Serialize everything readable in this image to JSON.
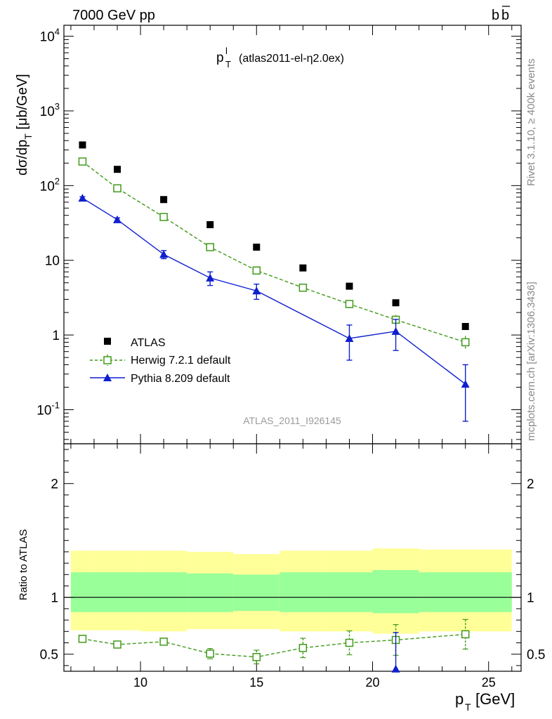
{
  "header": {
    "left": "7000 GeV pp",
    "right_base": "b",
    "right_bar": "b"
  },
  "side_labels": {
    "rivet": "Rivet 3.1.10, ≥ 400k events",
    "mcplots": "mcplots.cern.ch [arXiv:1306.3436]"
  },
  "chart_data": [
    {
      "type": "scatter",
      "panel": "main",
      "title_main": "p",
      "title_sup": "l",
      "title_sub": "T",
      "title_rest": "(atlas2011-el-η2.0ex)",
      "ylabel": "dσ/dp_T [μb/GeV]",
      "yscale": "log",
      "ylim": [
        0.035,
        14000
      ],
      "xlim": [
        6.7,
        26.4
      ],
      "y_tick_labels": [
        "10^-1",
        "1",
        "10",
        "10^2",
        "10^3",
        "10^4"
      ],
      "watermark": "ATLAS_2011_I926145",
      "legend_position": "bottom-left",
      "series": [
        {
          "name": "ATLAS",
          "color": "#000000",
          "marker": "filled-square",
          "x": [
            7.5,
            9,
            11,
            13,
            15,
            17,
            19,
            21,
            24
          ],
          "y": [
            350,
            165,
            65,
            30,
            15,
            7.9,
            4.5,
            2.7,
            1.3
          ]
        },
        {
          "name": "Herwig 7.2.1 default",
          "color": "#3f9a1a",
          "marker": "open-square",
          "line": "dashed",
          "x": [
            7.5,
            9,
            11,
            13,
            15,
            17,
            19,
            21,
            24
          ],
          "y": [
            210,
            92,
            38,
            15,
            7.3,
            4.3,
            2.6,
            1.6,
            0.8
          ],
          "yerr": [
            10,
            4,
            2,
            1,
            0.5,
            0.35,
            0.3,
            0.25,
            0.17
          ]
        },
        {
          "name": "Pythia 8.209 default",
          "color": "#0f1fcf",
          "marker": "filled-triangle",
          "line": "solid",
          "x": [
            7.5,
            9,
            11,
            13,
            15,
            17,
            19,
            21,
            24
          ],
          "y": [
            68,
            35,
            12,
            5.8,
            3.9,
            null,
            0.9,
            1.12,
            0.22
          ],
          "yerr_lo": [
            3,
            2,
            1.5,
            1.2,
            0.9,
            null,
            0.44,
            0.5,
            0.15
          ],
          "yerr_hi": [
            3,
            2,
            1.5,
            1.2,
            0.9,
            null,
            0.46,
            0.5,
            0.18
          ]
        }
      ]
    },
    {
      "type": "line",
      "panel": "ratio",
      "ylabel": "Ratio to ATLAS",
      "ylim": [
        0.35,
        2.35
      ],
      "xlim": [
        6.7,
        26.4
      ],
      "xlabel_main": "p",
      "xlabel_sub": "T",
      "xlabel_rest": "[GeV]",
      "x_tick_labels": [
        "10",
        "15",
        "20",
        "25"
      ],
      "y_tick_labels": [
        "0.5",
        "1",
        "2"
      ],
      "bands": {
        "edges": [
          7,
          8,
          10,
          12,
          14,
          16,
          18,
          20,
          22,
          26
        ],
        "yellow_lo": [
          0.71,
          0.71,
          0.7,
          0.72,
          0.72,
          0.7,
          0.7,
          0.68,
          0.7
        ],
        "yellow_hi": [
          1.41,
          1.41,
          1.41,
          1.4,
          1.38,
          1.41,
          1.41,
          1.43,
          1.42
        ],
        "green_lo": [
          0.87,
          0.87,
          0.87,
          0.87,
          0.88,
          0.87,
          0.87,
          0.86,
          0.87
        ],
        "green_hi": [
          1.22,
          1.22,
          1.22,
          1.21,
          1.2,
          1.22,
          1.22,
          1.24,
          1.22
        ],
        "yellow_color": "#ffff99",
        "green_color": "#99ff99"
      },
      "series": [
        {
          "name": "Herwig 7.2.1 default",
          "color": "#3f9a1a",
          "x": [
            7.5,
            9,
            11,
            13,
            15,
            17,
            19,
            21,
            24
          ],
          "y": [
            0.635,
            0.585,
            0.61,
            0.505,
            0.475,
            0.555,
            0.6,
            0.625,
            0.675
          ],
          "yerr": [
            0.02,
            0.02,
            0.03,
            0.045,
            0.06,
            0.085,
            0.105,
            0.135,
            0.13
          ]
        },
        {
          "name": "Pythia 8.209 default",
          "color": "#0f1fcf",
          "x": [
            21
          ],
          "y": [
            0.37
          ],
          "yerr": [
            0.32
          ]
        }
      ]
    }
  ]
}
